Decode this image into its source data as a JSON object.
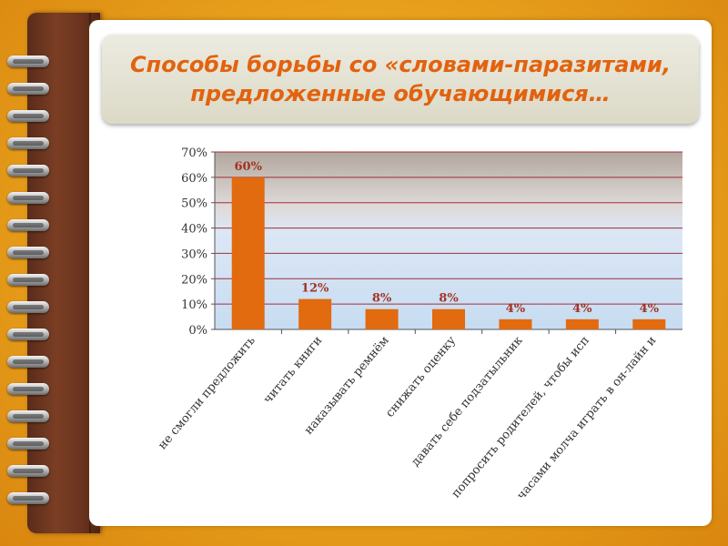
{
  "title": {
    "line1": "Способы борьбы со «словами-паразитами,",
    "line2": "предложенные обучающимися…"
  },
  "colors": {
    "bar": "#e26a0f",
    "title": "#e2620f",
    "label": "#a23322"
  },
  "chart_data": {
    "type": "bar",
    "categories": [
      "не смогли предложить",
      "читать книги",
      "наказывать ремнём",
      "снижать оценку",
      "давать себе подзатыльник",
      "попросить родителей, чтобы исп",
      "часами молча играть в он-лайн и"
    ],
    "values": [
      60,
      12,
      8,
      8,
      4,
      4,
      4
    ],
    "data_labels": [
      "60%",
      "12%",
      "8%",
      "8%",
      "4%",
      "4%",
      "4%"
    ],
    "yticks": [
      "0%",
      "10%",
      "20%",
      "30%",
      "40%",
      "50%",
      "60%",
      "70%"
    ],
    "ylim": [
      0,
      70
    ],
    "grid": true,
    "legend": "none"
  }
}
